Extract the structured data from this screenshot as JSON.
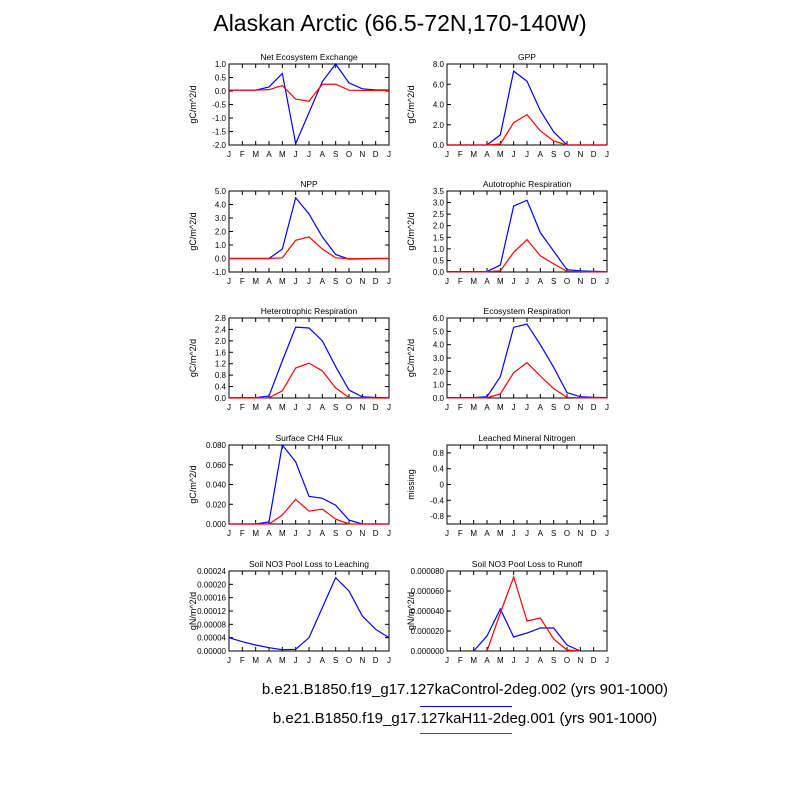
{
  "title": "Alaskan Arctic (66.5-72N,170-140W)",
  "colors": {
    "control": "#0000ff",
    "h11": "#ff0000"
  },
  "legend": [
    {
      "label": "b.e21.B1850.f19_g17.127kaControl-2deg.002 (yrs 901-1000)",
      "color": "#0000ff"
    },
    {
      "label": "b.e21.B1850.f19_g17.127kaH11-2deg.001 (yrs 901-1000)",
      "color": "#ff0000"
    }
  ],
  "chart_data": [
    {
      "type": "line",
      "title": "Net Ecosystem Exchange",
      "ylabel": "gC/m^2/d",
      "categories": [
        "J",
        "F",
        "M",
        "A",
        "M",
        "J",
        "J",
        "A",
        "S",
        "O",
        "N",
        "D",
        "J"
      ],
      "ylim": [
        -2.0,
        1.0
      ],
      "yticks": [
        "-2.0",
        "-1.5",
        "-1.0",
        "-0.5",
        "0.0",
        "0.5",
        "1.0"
      ],
      "series": [
        {
          "color": "#0000ff",
          "values": [
            0.03,
            0.03,
            0.03,
            0.15,
            0.65,
            -1.95,
            -0.8,
            0.35,
            1.0,
            0.3,
            0.08,
            0.04,
            0.04
          ]
        },
        {
          "color": "#ff0000",
          "values": [
            0.03,
            0.03,
            0.03,
            0.05,
            0.2,
            -0.3,
            -0.38,
            0.25,
            0.25,
            0.03,
            0.02,
            0.02,
            0.02
          ]
        }
      ]
    },
    {
      "type": "line",
      "title": "GPP",
      "ylabel": "gC/m^2/d",
      "categories": [
        "J",
        "F",
        "M",
        "A",
        "M",
        "J",
        "J",
        "A",
        "S",
        "O",
        "N",
        "D",
        "J"
      ],
      "ylim": [
        0,
        8.0
      ],
      "yticks": [
        "0.0",
        "2.0",
        "4.0",
        "6.0",
        "8.0"
      ],
      "series": [
        {
          "color": "#0000ff",
          "values": [
            0,
            0,
            0,
            0,
            1.0,
            7.3,
            6.3,
            3.4,
            1.3,
            0,
            0,
            0,
            0
          ]
        },
        {
          "color": "#ff0000",
          "values": [
            0,
            0,
            0,
            0,
            0.1,
            2.2,
            3.0,
            1.4,
            0.4,
            0,
            0,
            0,
            0
          ]
        }
      ]
    },
    {
      "type": "line",
      "title": "NPP",
      "ylabel": "gC/m^2/d",
      "categories": [
        "J",
        "F",
        "M",
        "A",
        "M",
        "J",
        "J",
        "A",
        "S",
        "O",
        "N",
        "D",
        "J"
      ],
      "ylim": [
        -1.0,
        5.0
      ],
      "yticks": [
        "-1.0",
        "0.0",
        "1.0",
        "2.0",
        "3.0",
        "4.0",
        "5.0"
      ],
      "series": [
        {
          "color": "#0000ff",
          "values": [
            0,
            0,
            0,
            0,
            0.7,
            4.5,
            3.3,
            1.6,
            0.3,
            -0.05,
            -0.02,
            0,
            0
          ]
        },
        {
          "color": "#ff0000",
          "values": [
            0,
            0,
            0,
            0,
            0.05,
            1.35,
            1.6,
            0.7,
            0.05,
            -0.02,
            -0.01,
            0,
            0
          ]
        }
      ]
    },
    {
      "type": "line",
      "title": "Autotrophic Respiration",
      "ylabel": "gC/m^2/d",
      "categories": [
        "J",
        "F",
        "M",
        "A",
        "M",
        "J",
        "J",
        "A",
        "S",
        "O",
        "N",
        "D",
        "J"
      ],
      "ylim": [
        0,
        3.5
      ],
      "yticks": [
        "0.0",
        "0.5",
        "1.0",
        "1.5",
        "2.0",
        "2.5",
        "3.0",
        "3.5"
      ],
      "series": [
        {
          "color": "#0000ff",
          "values": [
            0.02,
            0.02,
            0.02,
            0.02,
            0.3,
            2.85,
            3.1,
            1.7,
            0.9,
            0.1,
            0.05,
            0.03,
            0.02
          ]
        },
        {
          "color": "#ff0000",
          "values": [
            0.01,
            0.01,
            0.01,
            0.01,
            0.05,
            0.85,
            1.4,
            0.7,
            0.35,
            0.03,
            0.02,
            0.01,
            0.01
          ]
        }
      ]
    },
    {
      "type": "line",
      "title": "Heterotrophic Respiration",
      "ylabel": "gC/m^2/d",
      "categories": [
        "J",
        "F",
        "M",
        "A",
        "M",
        "J",
        "J",
        "A",
        "S",
        "O",
        "N",
        "D",
        "J"
      ],
      "ylim": [
        0,
        2.8
      ],
      "yticks": [
        "0.0",
        "0.4",
        "0.8",
        "1.2",
        "1.6",
        "2.0",
        "2.4",
        "2.8"
      ],
      "series": [
        {
          "color": "#0000ff",
          "values": [
            0.01,
            0.01,
            0.01,
            0.07,
            1.3,
            2.48,
            2.45,
            2.0,
            1.1,
            0.28,
            0.04,
            0.02,
            0.01
          ]
        },
        {
          "color": "#ff0000",
          "values": [
            0,
            0,
            0,
            0.01,
            0.25,
            1.05,
            1.22,
            0.95,
            0.35,
            0.02,
            0.01,
            0,
            0
          ]
        }
      ]
    },
    {
      "type": "line",
      "title": "Ecosystem Respiration",
      "ylabel": "gC/m^2/d",
      "categories": [
        "J",
        "F",
        "M",
        "A",
        "M",
        "J",
        "J",
        "A",
        "S",
        "O",
        "N",
        "D",
        "J"
      ],
      "ylim": [
        0,
        6.0
      ],
      "yticks": [
        "0.0",
        "1.0",
        "2.0",
        "3.0",
        "4.0",
        "5.0",
        "6.0"
      ],
      "series": [
        {
          "color": "#0000ff",
          "values": [
            0.03,
            0.03,
            0.03,
            0.1,
            1.6,
            5.3,
            5.55,
            4.0,
            2.3,
            0.4,
            0.1,
            0.05,
            0.03
          ]
        },
        {
          "color": "#ff0000",
          "values": [
            0.01,
            0.01,
            0.01,
            0.02,
            0.3,
            1.9,
            2.65,
            1.65,
            0.7,
            0.05,
            0.02,
            0.01,
            0.01
          ]
        }
      ]
    },
    {
      "type": "line",
      "title": "Surface CH4 Flux",
      "ylabel": "gC/m^2/d",
      "categories": [
        "J",
        "F",
        "M",
        "A",
        "M",
        "J",
        "J",
        "A",
        "S",
        "O",
        "N",
        "D",
        "J"
      ],
      "ylim": [
        0,
        0.08
      ],
      "yticks": [
        "0.000",
        "0.020",
        "0.040",
        "0.060",
        "0.080"
      ],
      "series": [
        {
          "color": "#0000ff",
          "values": [
            0,
            0,
            0,
            0.002,
            0.08,
            0.063,
            0.028,
            0.026,
            0.019,
            0.004,
            0,
            0,
            0
          ]
        },
        {
          "color": "#ff0000",
          "values": [
            0,
            0,
            0,
            0,
            0.009,
            0.025,
            0.013,
            0.015,
            0.005,
            0,
            0,
            0,
            0
          ]
        }
      ]
    },
    {
      "type": "line",
      "title": "Leached Mineral Nitrogen",
      "ylabel": "missing",
      "categories": [
        "J",
        "F",
        "M",
        "A",
        "M",
        "J",
        "J",
        "A",
        "S",
        "O",
        "N",
        "D",
        "J"
      ],
      "ylim": [
        -1.0,
        1.0
      ],
      "yticks": [
        "-0.8",
        "-0.4",
        "0",
        "0.4",
        "0.8"
      ],
      "series": []
    },
    {
      "type": "line",
      "title": "Soil NO3 Pool Loss to Leaching",
      "ylabel": "gN/m^2/d",
      "categories": [
        "J",
        "F",
        "M",
        "A",
        "M",
        "J",
        "J",
        "A",
        "S",
        "O",
        "N",
        "D",
        "J"
      ],
      "ylim": [
        0,
        0.00024
      ],
      "yticks": [
        "0.00000",
        "0.00004",
        "0.00008",
        "0.00012",
        "0.00016",
        "0.00020",
        "0.00024"
      ],
      "series": [
        {
          "color": "#0000ff",
          "values": [
            4e-05,
            2.8e-05,
            1.8e-05,
            1e-05,
            4e-06,
            5e-06,
            4e-05,
            0.00013,
            0.00022,
            0.00018,
            0.000105,
            6.5e-05,
            4e-05
          ]
        }
      ]
    },
    {
      "type": "line",
      "title": "Soil NO3 Pool Loss to Runoff",
      "ylabel": "gN/m^2/d",
      "categories": [
        "J",
        "F",
        "M",
        "A",
        "M",
        "J",
        "J",
        "A",
        "S",
        "O",
        "N",
        "D",
        "J"
      ],
      "ylim": [
        0,
        8e-05
      ],
      "yticks": [
        "0.000000",
        "0.000020",
        "0.000040",
        "0.000060",
        "0.000080"
      ],
      "series": [
        {
          "color": "#0000ff",
          "values": [
            null,
            null,
            0,
            1.5e-05,
            4.2e-05,
            1.4e-05,
            1.8e-05,
            2.3e-05,
            2.3e-05,
            6e-06,
            0,
            null,
            null
          ]
        },
        {
          "color": "#ff0000",
          "values": [
            null,
            null,
            null,
            0,
            3.8e-05,
            7.4e-05,
            3e-05,
            3.3e-05,
            1.2e-05,
            1e-06,
            0,
            null,
            null
          ]
        }
      ]
    }
  ]
}
